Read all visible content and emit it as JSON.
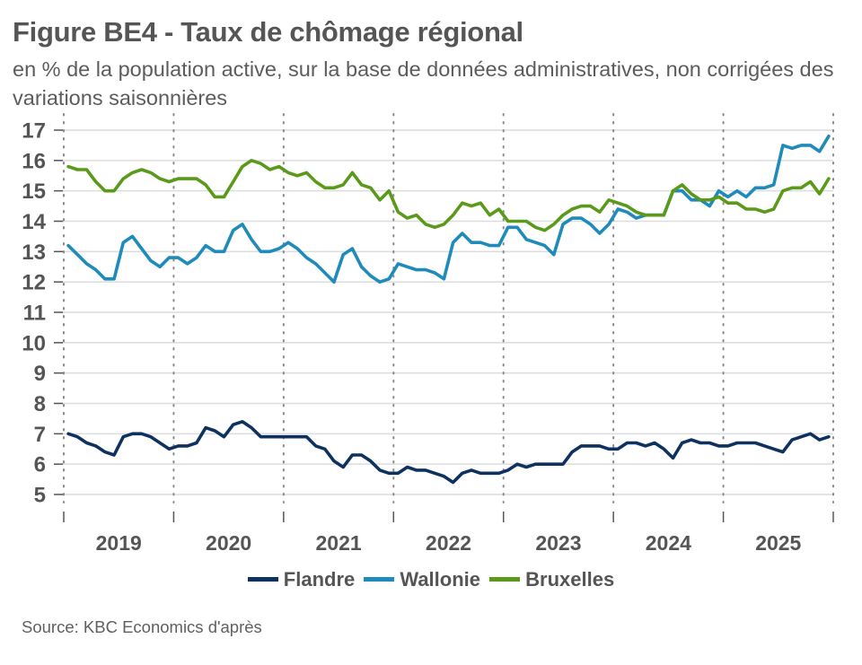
{
  "header": {
    "title": "Figure BE4 - Taux de chômage régional",
    "subtitle": "en % de la population active, sur la base de données administratives, non corrigées des variations saisonnières"
  },
  "source": "Source: KBC Economics d'après",
  "chart_data": {
    "type": "line",
    "title": "Figure BE4 - Taux de chômage régional",
    "subtitle": "en % de la population active, sur la base de données administratives, non corrigées des variations saisonnières",
    "xlabel": "",
    "ylabel": "",
    "ylim": [
      5,
      17
    ],
    "yticks": [
      5,
      6,
      7,
      8,
      9,
      10,
      11,
      12,
      13,
      14,
      15,
      16,
      17
    ],
    "x_periods": "monthly, Jan 2019 - Dec 2025",
    "year_labels": [
      "2019",
      "2020",
      "2021",
      "2022",
      "2023",
      "2024",
      "2025"
    ],
    "grid": "horizontal solid, vertical dotted at year boundaries",
    "legend_position": "bottom-center",
    "series": [
      {
        "name": "Flandre",
        "color": "#0d3260",
        "values": [
          7.0,
          6.9,
          6.7,
          6.6,
          6.4,
          6.3,
          6.9,
          7.0,
          7.0,
          6.9,
          6.7,
          6.5,
          6.6,
          6.6,
          6.7,
          7.2,
          7.1,
          6.9,
          7.3,
          7.4,
          7.2,
          6.9,
          6.9,
          6.9,
          6.9,
          6.9,
          6.9,
          6.6,
          6.5,
          6.1,
          5.9,
          6.3,
          6.3,
          6.1,
          5.8,
          5.7,
          5.7,
          5.9,
          5.8,
          5.8,
          5.7,
          5.6,
          5.4,
          5.7,
          5.8,
          5.7,
          5.7,
          5.7,
          5.8,
          6.0,
          5.9,
          6.0,
          6.0,
          6.0,
          6.0,
          6.4,
          6.6,
          6.6,
          6.6,
          6.5,
          6.5,
          6.7,
          6.7,
          6.6,
          6.7,
          6.5,
          6.2,
          6.7,
          6.8,
          6.7,
          6.7,
          6.6,
          6.6,
          6.7,
          6.7,
          6.7,
          6.6,
          6.5,
          6.4,
          6.8,
          6.9,
          7.0,
          6.8,
          6.9
        ]
      },
      {
        "name": "Wallonie",
        "color": "#1e8bbb",
        "values": [
          13.2,
          12.9,
          12.6,
          12.4,
          12.1,
          12.1,
          13.3,
          13.5,
          13.1,
          12.7,
          12.5,
          12.8,
          12.8,
          12.6,
          12.8,
          13.2,
          13.0,
          13.0,
          13.7,
          13.9,
          13.4,
          13.0,
          13.0,
          13.1,
          13.3,
          13.1,
          12.8,
          12.6,
          12.3,
          12.0,
          12.9,
          13.1,
          12.5,
          12.2,
          12.0,
          12.1,
          12.6,
          12.5,
          12.4,
          12.4,
          12.3,
          12.1,
          13.3,
          13.6,
          13.3,
          13.3,
          13.2,
          13.2,
          13.8,
          13.8,
          13.4,
          13.3,
          13.2,
          12.9,
          13.9,
          14.1,
          14.1,
          13.9,
          13.6,
          13.9,
          14.4,
          14.3,
          14.1,
          14.2,
          14.2,
          14.2,
          15.0,
          15.0,
          14.7,
          14.7,
          14.5,
          15.0,
          14.8,
          15.0,
          14.8,
          15.1,
          15.1,
          15.2,
          16.5,
          16.4,
          16.5,
          16.5,
          16.3,
          16.8
        ]
      },
      {
        "name": "Bruxelles",
        "color": "#5a9a1a",
        "values": [
          15.8,
          15.7,
          15.7,
          15.3,
          15.0,
          15.0,
          15.4,
          15.6,
          15.7,
          15.6,
          15.4,
          15.3,
          15.4,
          15.4,
          15.4,
          15.2,
          14.8,
          14.8,
          15.3,
          15.8,
          16.0,
          15.9,
          15.7,
          15.8,
          15.6,
          15.5,
          15.6,
          15.3,
          15.1,
          15.1,
          15.2,
          15.6,
          15.2,
          15.1,
          14.7,
          15.0,
          14.3,
          14.1,
          14.2,
          13.9,
          13.8,
          13.9,
          14.2,
          14.6,
          14.5,
          14.6,
          14.2,
          14.4,
          14.0,
          14.0,
          14.0,
          13.8,
          13.7,
          13.9,
          14.2,
          14.4,
          14.5,
          14.5,
          14.3,
          14.7,
          14.6,
          14.5,
          14.3,
          14.2,
          14.2,
          14.2,
          15.0,
          15.2,
          14.9,
          14.7,
          14.7,
          14.8,
          14.6,
          14.6,
          14.4,
          14.4,
          14.3,
          14.4,
          15.0,
          15.1,
          15.1,
          15.3,
          14.9,
          15.4
        ]
      }
    ]
  }
}
